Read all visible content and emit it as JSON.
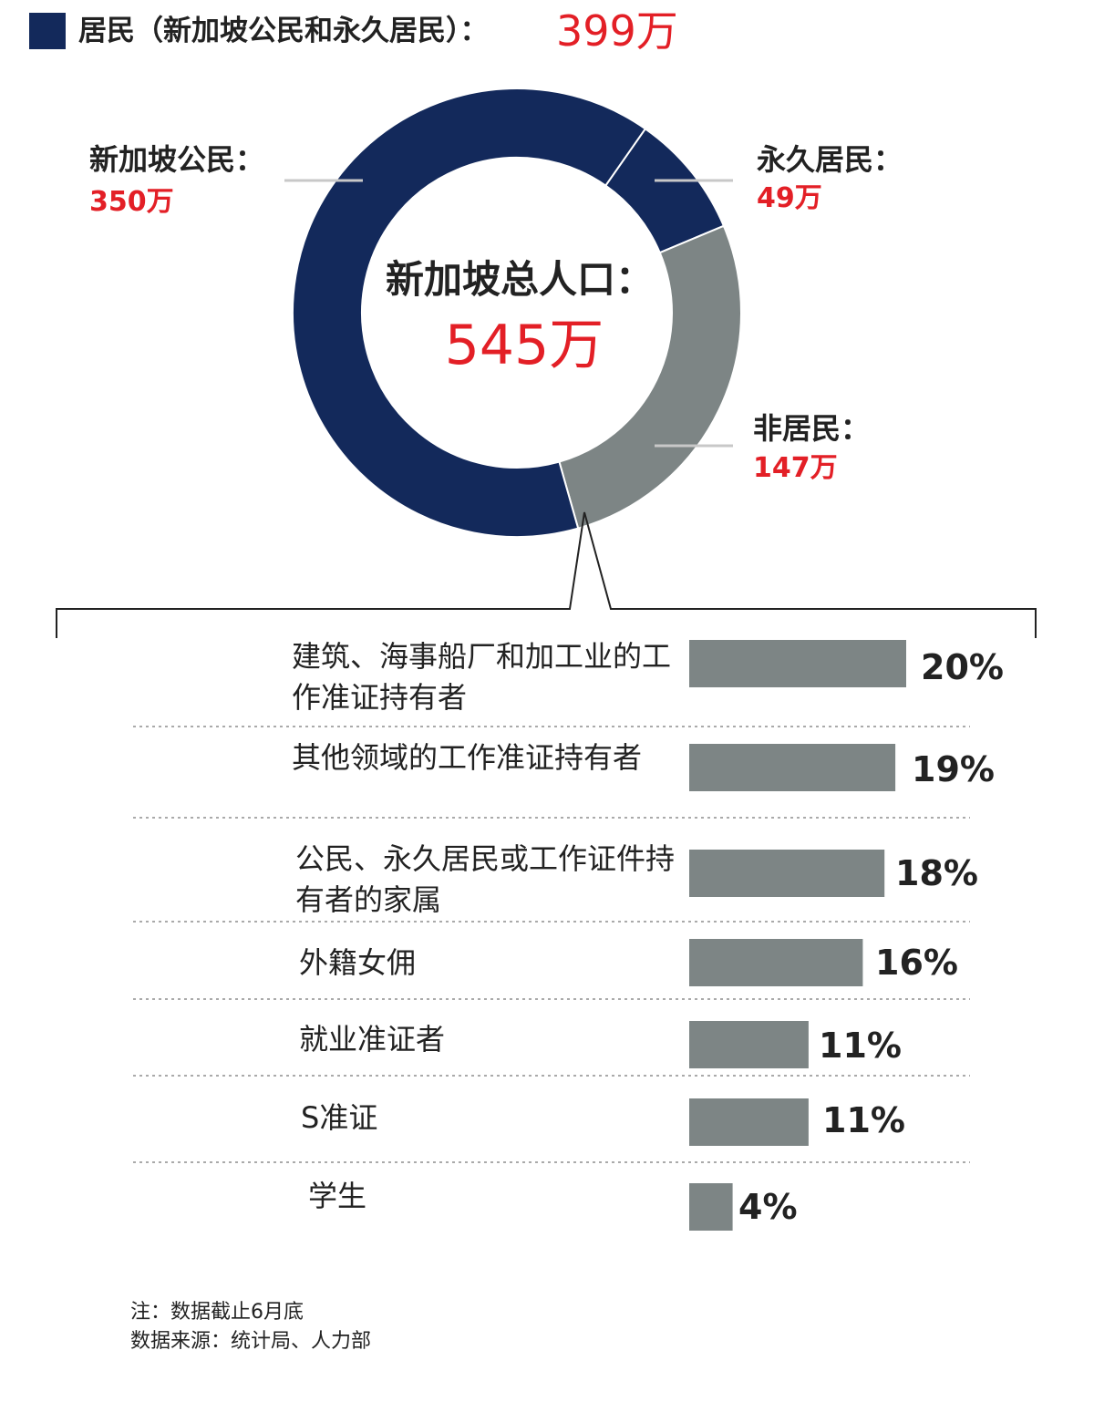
{
  "colors": {
    "resident": "#13295b",
    "nonresident": "#7d8585",
    "accent": "#e31f26",
    "text": "#222222"
  },
  "legend": {
    "label": "居民（新加坡公民和永久居民）：",
    "value": "399万"
  },
  "chart_data": [
    {
      "type": "pie",
      "center_label": "新加坡总人口：",
      "center_value": "545万",
      "slices": [
        {
          "label": "新加坡公民：",
          "value_text": "350万",
          "value": 350
        },
        {
          "label": "永久居民：",
          "value_text": "49万",
          "value": 49
        },
        {
          "label": "非居民：",
          "value_text": "147万",
          "value": 147
        }
      ]
    },
    {
      "type": "bar",
      "orientation": "horizontal",
      "categories": [
        "建筑、海事船厂和加工业的工作准证持有者",
        "其他领域的工作准证持有者",
        "公民、永久居民或工作证件持有者的家属",
        "外籍女佣",
        "就业准证者",
        "S准证",
        "学生"
      ],
      "values": [
        20,
        19,
        18,
        16,
        11,
        11,
        4
      ],
      "value_labels": [
        "20%",
        "19%",
        "18%",
        "16%",
        "11%",
        "11%",
        "4%"
      ]
    }
  ],
  "notes": {
    "note": "注：数据截止6月底",
    "source": "数据来源：统计局、人力部"
  }
}
